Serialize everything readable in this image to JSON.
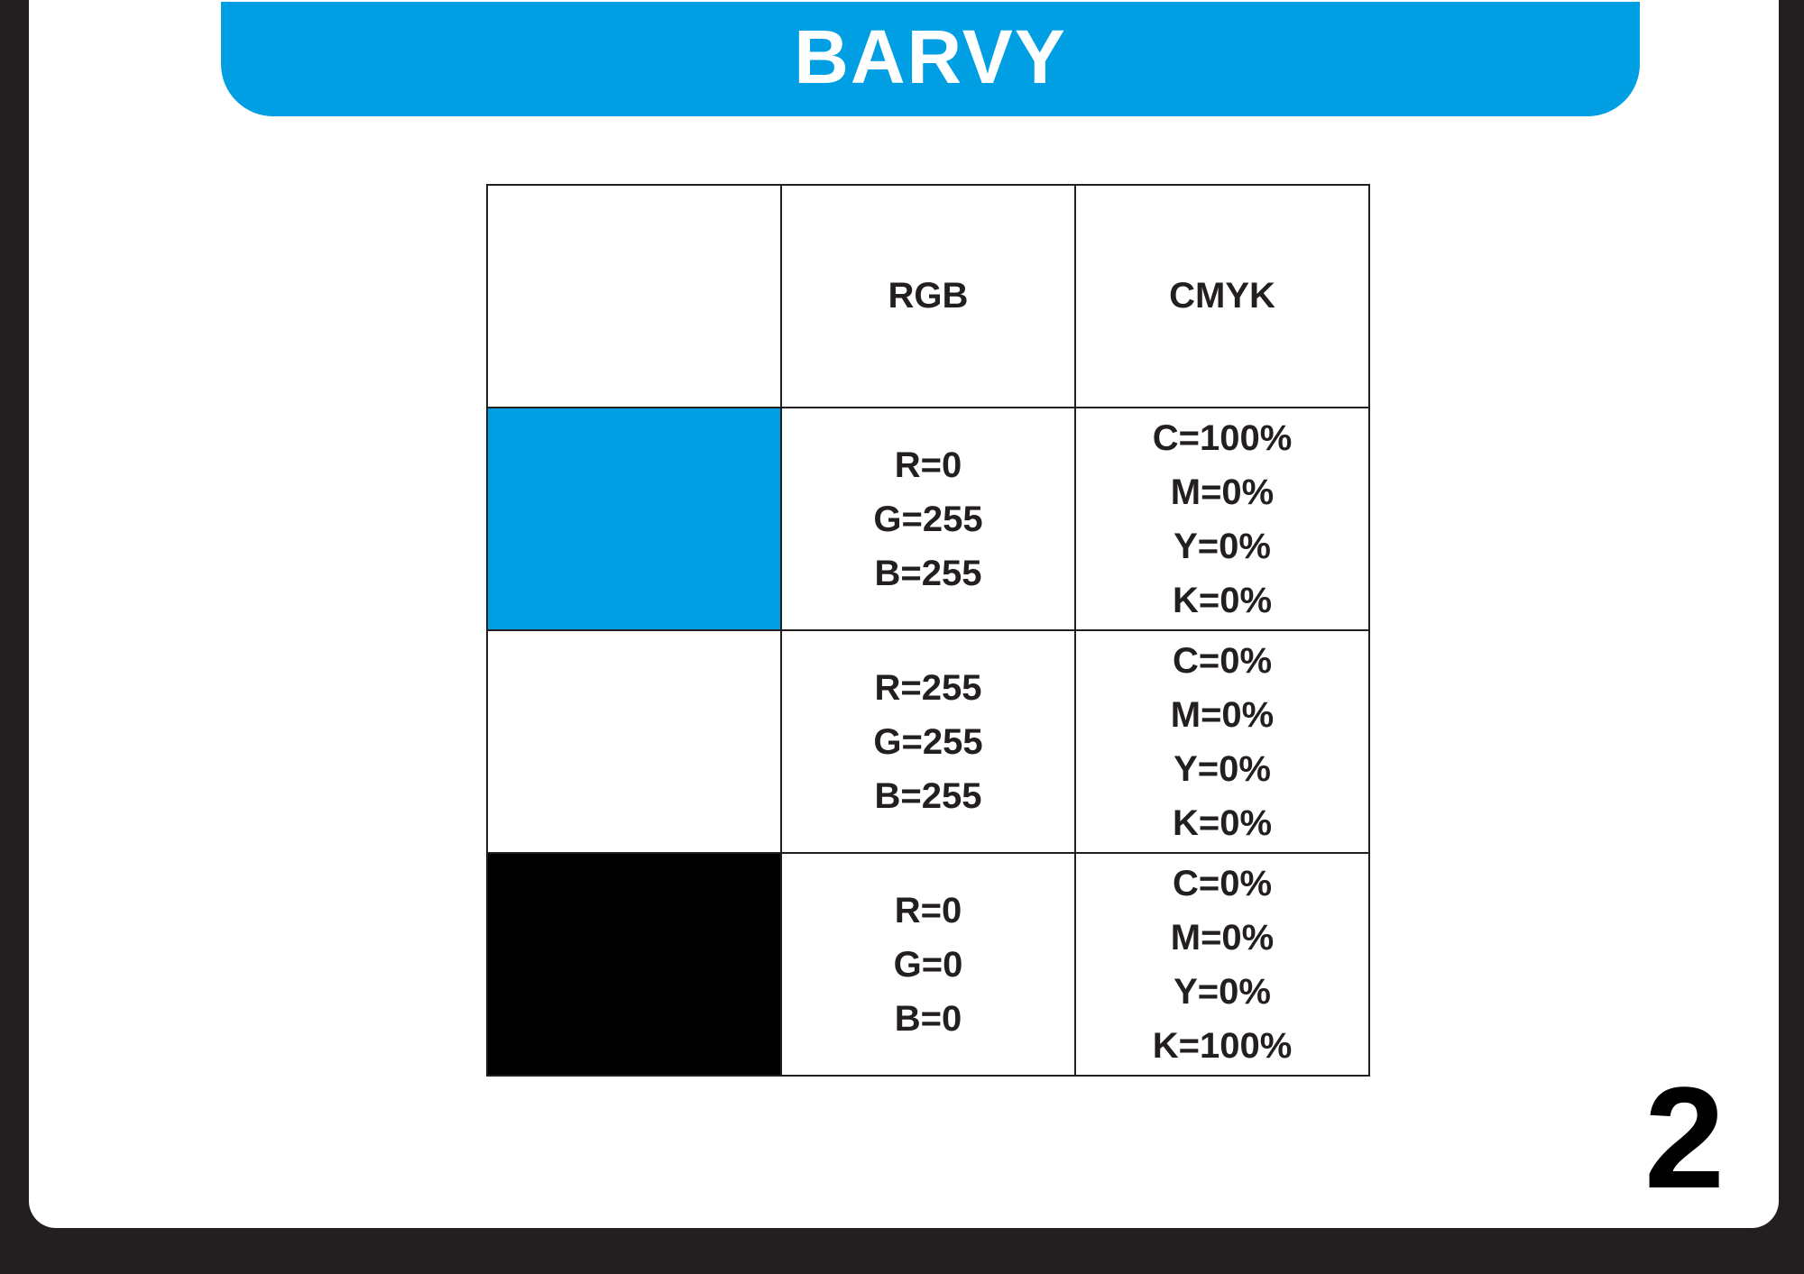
{
  "banner": {
    "title": "BARVY"
  },
  "colors": {
    "accent": "#009fe3",
    "cyan_swatch": "#009fe3",
    "white_swatch": "#ffffff",
    "black_swatch": "#000000"
  },
  "table": {
    "headers": [
      "",
      "RGB",
      "CMYK"
    ],
    "rows": [
      {
        "swatch_color": "#009fe3",
        "rgb": [
          "R=0",
          "G=255",
          "B=255"
        ],
        "cmyk": [
          "C=100%",
          "M=0%",
          "Y=0%",
          "K=0%"
        ]
      },
      {
        "swatch_color": "#ffffff",
        "rgb": [
          "R=255",
          "G=255",
          "B=255"
        ],
        "cmyk": [
          "C=0%",
          "M=0%",
          "Y=0%",
          "K=0%"
        ]
      },
      {
        "swatch_color": "#000000",
        "rgb": [
          "R=0",
          "G=0",
          "B=0"
        ],
        "cmyk": [
          "C=0%",
          "M=0%",
          "Y=0%",
          "K=100%"
        ]
      }
    ]
  },
  "page_number": "2"
}
